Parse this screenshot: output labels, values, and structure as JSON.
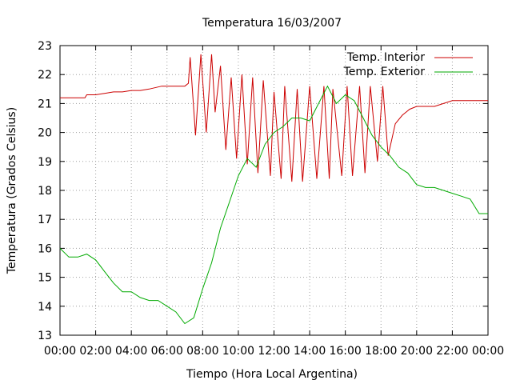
{
  "chart_data": {
    "type": "line",
    "title": "Temperatura 16/03/2007",
    "xlabel": "Tiempo (Hora Local Argentina)",
    "ylabel": "Temperatura (Grados Celsius)",
    "x_unit": "hours",
    "xlim": [
      0,
      24
    ],
    "ylim": [
      13,
      23
    ],
    "x_ticks": [
      0,
      2,
      4,
      6,
      8,
      10,
      12,
      14,
      16,
      18,
      20,
      22,
      24
    ],
    "x_tick_labels": [
      "00:00",
      "02:00",
      "04:00",
      "06:00",
      "08:00",
      "10:00",
      "12:00",
      "14:00",
      "16:00",
      "18:00",
      "20:00",
      "22:00",
      "00:00"
    ],
    "y_ticks": [
      13,
      14,
      15,
      16,
      17,
      18,
      19,
      20,
      21,
      22,
      23
    ],
    "y_tick_labels": [
      "13",
      "14",
      "15",
      "16",
      "17",
      "18",
      "19",
      "20",
      "21",
      "22",
      "23"
    ],
    "grid": true,
    "legend_position": "top-right",
    "series": [
      {
        "name": "Temp. Interior",
        "color": "#cc0000",
        "x": [
          0,
          1.4,
          1.5,
          2.0,
          2.5,
          3.0,
          3.5,
          4.0,
          4.5,
          5.0,
          5.7,
          6.5,
          7.0,
          7.2,
          7.3,
          7.6,
          7.9,
          8.2,
          8.5,
          8.7,
          9.0,
          9.3,
          9.6,
          9.9,
          10.2,
          10.5,
          10.8,
          11.1,
          11.4,
          11.8,
          12.0,
          12.4,
          12.6,
          13.0,
          13.3,
          13.6,
          14.0,
          14.4,
          14.8,
          15.1,
          15.3,
          15.8,
          16.1,
          16.4,
          16.8,
          17.1,
          17.4,
          17.8,
          18.1,
          18.4,
          18.8,
          19.2,
          19.4,
          19.6,
          20.0,
          20.5,
          21.0,
          21.5,
          22.0,
          22.5,
          23.0,
          23.5,
          24.0
        ],
        "y": [
          21.2,
          21.2,
          21.3,
          21.3,
          21.35,
          21.4,
          21.4,
          21.45,
          21.45,
          21.5,
          21.6,
          21.6,
          21.6,
          21.7,
          22.6,
          19.9,
          22.7,
          20.0,
          22.7,
          20.7,
          22.3,
          19.4,
          21.9,
          19.1,
          22.0,
          18.9,
          21.9,
          18.6,
          21.8,
          18.5,
          21.4,
          18.4,
          21.6,
          18.3,
          21.5,
          18.3,
          21.6,
          18.4,
          21.6,
          18.4,
          21.5,
          18.5,
          21.6,
          18.5,
          21.6,
          18.6,
          21.6,
          19.0,
          21.6,
          19.2,
          20.3,
          20.6,
          20.7,
          20.8,
          20.9,
          20.9,
          20.9,
          21.0,
          21.1,
          21.1,
          21.1,
          21.1,
          21.1
        ]
      },
      {
        "name": "Temp. Exterior",
        "color": "#00aa00",
        "x": [
          0,
          0.5,
          1.0,
          1.5,
          2.0,
          2.5,
          3.0,
          3.5,
          4.0,
          4.5,
          5.0,
          5.5,
          6.0,
          6.5,
          7.0,
          7.5,
          8.0,
          8.5,
          9.0,
          9.5,
          10.0,
          10.5,
          11.0,
          11.5,
          12.0,
          12.5,
          13.0,
          13.5,
          14.0,
          14.5,
          15.0,
          15.5,
          16.0,
          16.5,
          17.0,
          17.5,
          18.0,
          18.5,
          19.0,
          19.5,
          20.0,
          20.5,
          21.0,
          21.5,
          22.0,
          22.5,
          23.0,
          23.5,
          24.0
        ],
        "y": [
          16.0,
          15.7,
          15.7,
          15.8,
          15.6,
          15.2,
          14.8,
          14.5,
          14.5,
          14.3,
          14.2,
          14.2,
          14.0,
          13.8,
          13.4,
          13.6,
          14.6,
          15.5,
          16.7,
          17.6,
          18.5,
          19.1,
          18.8,
          19.6,
          20.0,
          20.2,
          20.5,
          20.5,
          20.4,
          21.0,
          21.6,
          21.0,
          21.3,
          21.1,
          20.5,
          19.9,
          19.5,
          19.2,
          18.8,
          18.6,
          18.2,
          18.1,
          18.1,
          18.0,
          17.9,
          17.8,
          17.7,
          17.2,
          17.2
        ]
      }
    ]
  }
}
